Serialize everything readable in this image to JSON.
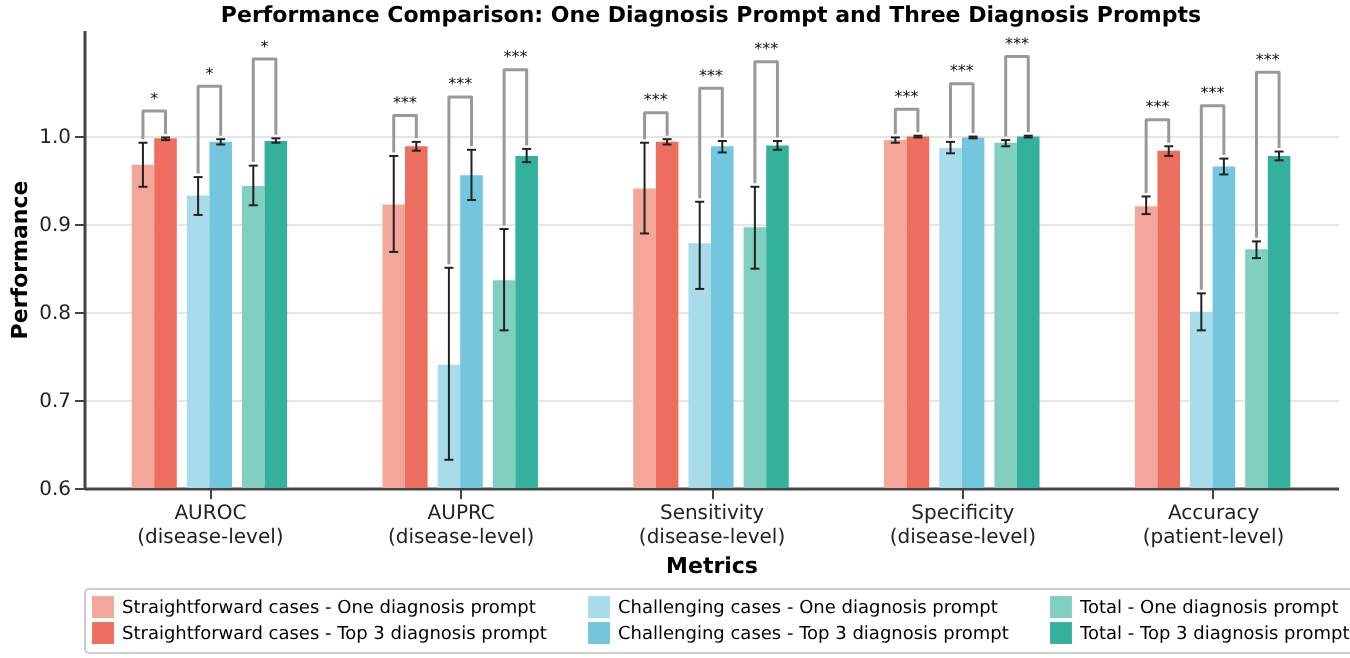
{
  "chart_data": {
    "type": "bar",
    "title": "Performance Comparison: One Diagnosis Prompt and Three Diagnosis Prompts",
    "xlabel": "Metrics",
    "ylabel": "Performance",
    "categories": [
      "AUROC\n(disease-level)",
      "AUPRC\n(disease-level)",
      "Sensitivity\n(disease-level)",
      "Specificity\n(disease-level)",
      "Accuracy\n(patient-level)"
    ],
    "series": [
      {
        "name": "Straightforward cases - One diagnosis prompt",
        "color": "#f4a69a",
        "values": [
          0.967,
          0.922,
          0.94,
          0.995,
          0.92
        ],
        "errors": [
          [
            0.942,
            0.992
          ],
          [
            0.868,
            0.977
          ],
          [
            0.889,
            0.992
          ],
          [
            0.992,
            0.998
          ],
          [
            0.911,
            0.931
          ]
        ]
      },
      {
        "name": "Straightforward cases - Top 3 diagnosis prompt",
        "color": "#ec6e5e",
        "values": [
          0.997,
          0.988,
          0.993,
          0.999,
          0.983
        ],
        "errors": [
          [
            0.995,
            0.998
          ],
          [
            0.983,
            0.993
          ],
          [
            0.99,
            0.996
          ],
          [
            0.998,
            1.0
          ],
          [
            0.977,
            0.988
          ]
        ]
      },
      {
        "name": "Challenging cases - One diagnosis prompt",
        "color": "#a8dcea",
        "values": [
          0.932,
          0.74,
          0.878,
          0.986,
          0.8
        ],
        "errors": [
          [
            0.91,
            0.953
          ],
          [
            0.632,
            0.85
          ],
          [
            0.826,
            0.925
          ],
          [
            0.98,
            0.993
          ],
          [
            0.779,
            0.821
          ]
        ]
      },
      {
        "name": "Challenging cases - Top 3 diagnosis prompt",
        "color": "#72c6dd",
        "values": [
          0.993,
          0.955,
          0.988,
          0.998,
          0.965
        ],
        "errors": [
          [
            0.99,
            0.996
          ],
          [
            0.927,
            0.984
          ],
          [
            0.981,
            0.994
          ],
          [
            0.997,
            0.999
          ],
          [
            0.956,
            0.974
          ]
        ]
      },
      {
        "name": "Total - One diagnosis prompt",
        "color": "#80cfc0",
        "values": [
          0.943,
          0.836,
          0.896,
          0.992,
          0.871
        ],
        "errors": [
          [
            0.921,
            0.966
          ],
          [
            0.779,
            0.894
          ],
          [
            0.849,
            0.942
          ],
          [
            0.988,
            0.995
          ],
          [
            0.861,
            0.88
          ]
        ]
      },
      {
        "name": "Total - Top 3 diagnosis prompt",
        "color": "#33b19c",
        "values": [
          0.994,
          0.977,
          0.989,
          0.999,
          0.977
        ],
        "errors": [
          [
            0.992,
            0.997
          ],
          [
            0.97,
            0.985
          ],
          [
            0.984,
            0.994
          ],
          [
            0.998,
            1.0
          ],
          [
            0.972,
            0.982
          ]
        ]
      }
    ],
    "annotations": [
      "*",
      "*",
      "*",
      "***",
      "***",
      "***",
      "***",
      "***",
      "***",
      "***",
      "***",
      "***",
      "***",
      "***",
      "***"
    ],
    "ylim": [
      0.6,
      1.12
    ],
    "yticks": [
      0.6,
      0.7,
      0.8,
      0.9,
      {
        "value": 1.0,
        "label": "1.0"
      }
    ],
    "grid": "y",
    "legend": "bottom"
  }
}
